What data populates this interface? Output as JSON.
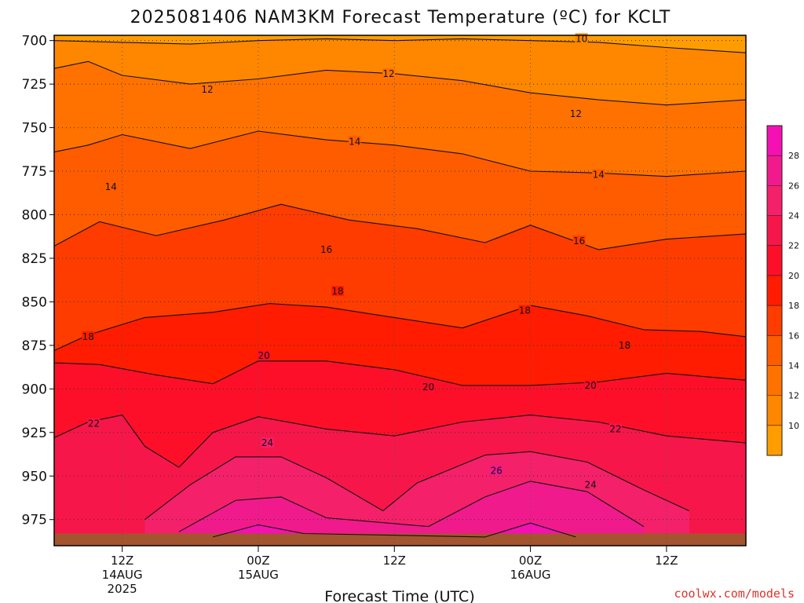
{
  "chart_data": {
    "type": "heatmap",
    "title": "2025081406 NAM3KM Forecast Temperature (ºC) for KCLT",
    "xlabel": "Forecast Time (UTC)",
    "ylabel": "",
    "y_ticks": [
      700,
      725,
      750,
      775,
      800,
      825,
      850,
      875,
      900,
      925,
      950,
      975
    ],
    "ylim": [
      697,
      990
    ],
    "x_ticks": [
      {
        "hour": 12,
        "label": "12Z",
        "sub": "14AUG",
        "sub2": "2025"
      },
      {
        "hour": 24,
        "label": "00Z",
        "sub": "15AUG",
        "sub2": ""
      },
      {
        "hour": 36,
        "label": "12Z",
        "sub": "",
        "sub2": ""
      },
      {
        "hour": 48,
        "label": "00Z",
        "sub": "16AUG",
        "sub2": ""
      },
      {
        "hour": 60,
        "label": "12Z",
        "sub": "",
        "sub2": ""
      }
    ],
    "xlim": [
      6,
      67
    ],
    "grid": true,
    "colorbar": {
      "levels": [
        8,
        10,
        12,
        14,
        16,
        18,
        20,
        22,
        24,
        26,
        28,
        30
      ],
      "tick_labels": [
        "10",
        "12",
        "14",
        "16",
        "18",
        "20",
        "22",
        "24",
        "26",
        "28"
      ],
      "colors": [
        "#ff9d00",
        "#ff8700",
        "#ff7200",
        "#ff5c00",
        "#ff3c00",
        "#ff1c00",
        "#fd0f2a",
        "#f7164a",
        "#f5206a",
        "#f11a8c",
        "#f510b4"
      ]
    },
    "series": [
      {
        "level": 10,
        "points": [
          [
            6,
            700
          ],
          [
            12,
            701
          ],
          [
            18,
            702
          ],
          [
            24,
            700
          ],
          [
            30,
            699
          ],
          [
            36,
            700
          ],
          [
            42,
            699
          ],
          [
            48,
            700
          ],
          [
            54,
            701
          ],
          [
            60,
            704
          ],
          [
            67,
            707
          ]
        ],
        "labels": [
          {
            "hour": 52.5,
            "p": 699,
            "text": "10"
          }
        ]
      },
      {
        "level": 12,
        "points": [
          [
            6,
            716
          ],
          [
            9,
            712
          ],
          [
            12,
            720
          ],
          [
            18,
            725
          ],
          [
            24,
            722
          ],
          [
            30,
            717
          ],
          [
            36,
            719
          ],
          [
            42,
            723
          ],
          [
            48,
            730
          ],
          [
            54,
            734
          ],
          [
            60,
            737
          ],
          [
            67,
            734
          ]
        ],
        "labels": [
          {
            "hour": 19.5,
            "p": 728,
            "text": "12"
          },
          {
            "hour": 35.5,
            "p": 719,
            "text": "12"
          },
          {
            "hour": 52,
            "p": 742,
            "text": "12"
          }
        ]
      },
      {
        "level": 14,
        "points": [
          [
            6,
            764
          ],
          [
            9,
            760
          ],
          [
            12,
            754
          ],
          [
            18,
            762
          ],
          [
            24,
            752
          ],
          [
            30,
            757
          ],
          [
            36,
            760
          ],
          [
            42,
            765
          ],
          [
            48,
            775
          ],
          [
            54,
            776
          ],
          [
            60,
            778
          ],
          [
            67,
            775
          ]
        ],
        "labels": [
          {
            "hour": 11,
            "p": 784,
            "text": "14"
          },
          {
            "hour": 32.5,
            "p": 758,
            "text": "14"
          },
          {
            "hour": 54,
            "p": 777,
            "text": "14"
          }
        ]
      },
      {
        "level": 16,
        "points": [
          [
            6,
            818
          ],
          [
            10,
            804
          ],
          [
            15,
            812
          ],
          [
            21,
            803
          ],
          [
            26,
            794
          ],
          [
            32,
            803
          ],
          [
            38,
            808
          ],
          [
            44,
            816
          ],
          [
            48,
            806
          ],
          [
            54,
            820
          ],
          [
            60,
            814
          ],
          [
            67,
            811
          ]
        ],
        "labels": [
          {
            "hour": 30,
            "p": 820,
            "text": "16"
          },
          {
            "hour": 52.3,
            "p": 815,
            "text": "16"
          }
        ]
      },
      {
        "level": 18,
        "points": [
          [
            6,
            878
          ],
          [
            9,
            869
          ],
          [
            14,
            859
          ],
          [
            20,
            856
          ],
          [
            25,
            851
          ],
          [
            30,
            853
          ],
          [
            36,
            859
          ],
          [
            42,
            865
          ],
          [
            48,
            852
          ],
          [
            53,
            858
          ],
          [
            58,
            866
          ],
          [
            63,
            867
          ],
          [
            67,
            870
          ]
        ],
        "labels": [
          {
            "hour": 9,
            "p": 870,
            "text": "18"
          },
          {
            "hour": 31,
            "p": 844,
            "text": "18"
          },
          {
            "hour": 47.5,
            "p": 855,
            "text": "18"
          },
          {
            "hour": 56.3,
            "p": 875,
            "text": "18"
          }
        ]
      },
      {
        "level": 20,
        "points": [
          [
            6,
            885
          ],
          [
            10,
            886
          ],
          [
            15,
            892
          ],
          [
            20,
            897
          ],
          [
            24,
            884
          ],
          [
            30,
            884
          ],
          [
            36,
            889
          ],
          [
            42,
            898
          ],
          [
            48,
            898
          ],
          [
            54,
            896
          ],
          [
            60,
            891
          ],
          [
            67,
            895
          ]
        ],
        "labels": [
          {
            "hour": 24.5,
            "p": 881,
            "text": "20"
          },
          {
            "hour": 39,
            "p": 899,
            "text": "20"
          },
          {
            "hour": 53.3,
            "p": 898,
            "text": "20"
          }
        ]
      },
      {
        "level": 22,
        "points": [
          [
            6,
            928
          ],
          [
            9,
            919
          ],
          [
            12,
            915
          ],
          [
            14,
            933
          ],
          [
            17,
            945
          ],
          [
            20,
            925
          ],
          [
            24,
            916
          ],
          [
            30,
            923
          ],
          [
            36,
            927
          ],
          [
            42,
            919
          ],
          [
            48,
            915
          ],
          [
            54,
            919
          ],
          [
            60,
            927
          ],
          [
            67,
            931
          ]
        ],
        "labels": [
          {
            "hour": 9.5,
            "p": 920,
            "text": "22"
          },
          {
            "hour": 55.5,
            "p": 923,
            "text": "22"
          }
        ]
      },
      {
        "level": 24,
        "points": [
          [
            14,
            975
          ],
          [
            18,
            955
          ],
          [
            22,
            939
          ],
          [
            26,
            939
          ],
          [
            30,
            951
          ],
          [
            35,
            970
          ],
          [
            38,
            954
          ],
          [
            44,
            938
          ],
          [
            48,
            936
          ],
          [
            53,
            942
          ],
          [
            58,
            958
          ],
          [
            62,
            970
          ]
        ],
        "labels": [
          {
            "hour": 24.8,
            "p": 931,
            "text": "24"
          },
          {
            "hour": 53.3,
            "p": 955,
            "text": "24"
          }
        ]
      },
      {
        "level": 26,
        "points": [
          [
            17,
            982
          ],
          [
            22,
            964
          ],
          [
            26,
            962
          ],
          [
            30,
            974
          ],
          [
            39,
            979
          ],
          [
            44,
            962
          ],
          [
            48,
            953
          ],
          [
            53,
            959
          ],
          [
            58,
            979
          ]
        ],
        "labels": [
          {
            "hour": 45,
            "p": 947,
            "text": "26"
          }
        ]
      },
      {
        "level": 28,
        "points": [
          [
            20,
            985
          ],
          [
            24,
            978
          ],
          [
            28,
            983
          ],
          [
            44,
            985
          ],
          [
            48,
            977
          ],
          [
            52,
            985
          ]
        ],
        "labels": []
      }
    ]
  },
  "credit": "coolwx.com/models"
}
